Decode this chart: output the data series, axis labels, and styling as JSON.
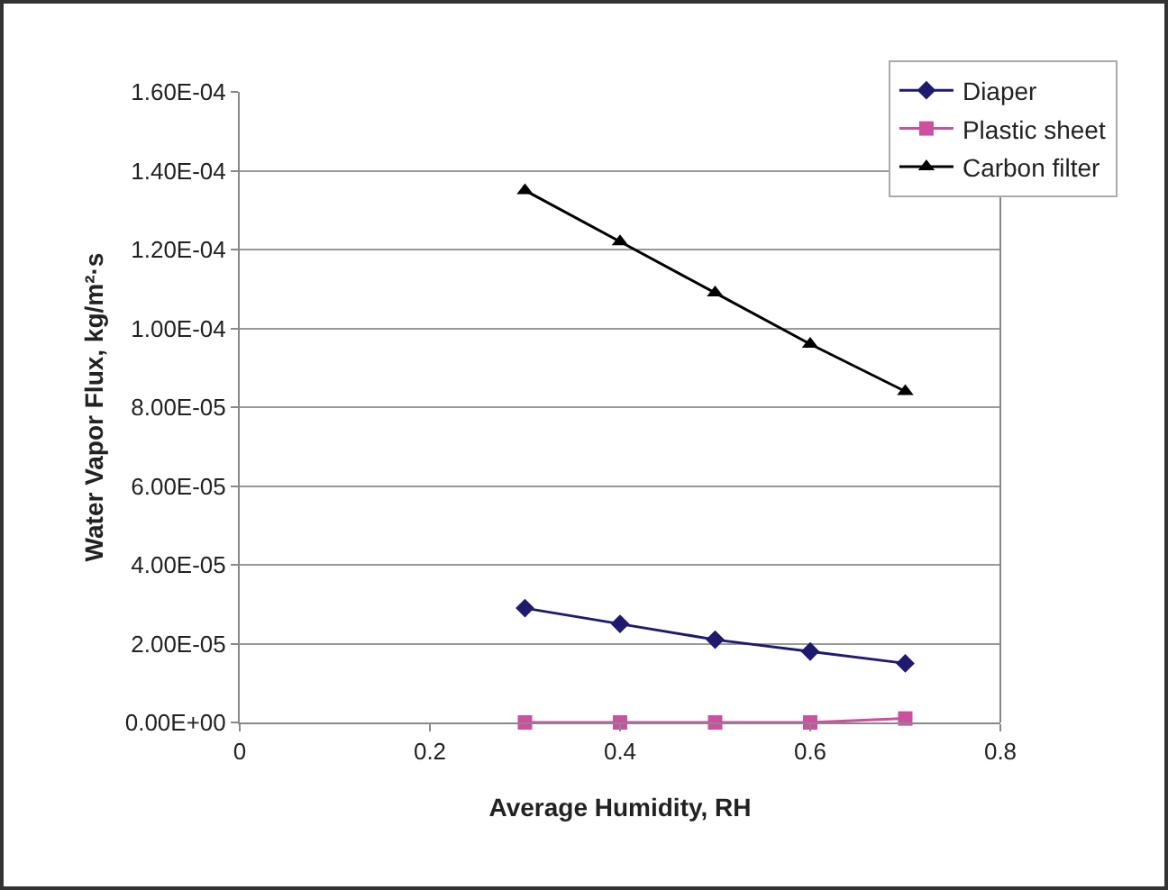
{
  "chart_data": {
    "type": "line",
    "xlabel": "Average Humidity, RH",
    "ylabel": "Water Vapor Flux, kg/m²·s",
    "x": [
      0.3,
      0.4,
      0.5,
      0.6,
      0.7
    ],
    "series": [
      {
        "name": "Diaper",
        "color": "#1f1a6e",
        "marker": "diamond",
        "values": [
          2.9e-05,
          2.5e-05,
          2.1e-05,
          1.8e-05,
          1.5e-05
        ]
      },
      {
        "name": "Plastic sheet",
        "color": "#cc4fa0",
        "marker": "square",
        "values": [
          0,
          0,
          0,
          0,
          1e-06
        ]
      },
      {
        "name": "Carbon filter",
        "color": "#000000",
        "marker": "triangle",
        "values": [
          0.000135,
          0.000122,
          0.000109,
          9.6e-05,
          8.4e-05
        ]
      }
    ],
    "xlim": [
      0,
      0.8
    ],
    "xticks": [
      0,
      0.2,
      0.4,
      0.6,
      0.8
    ],
    "ylim": [
      0,
      0.00016
    ],
    "yticks": [
      {
        "value": 0,
        "label": "0.00E+00"
      },
      {
        "value": 2e-05,
        "label": "2.00E-05"
      },
      {
        "value": 4e-05,
        "label": "4.00E-05"
      },
      {
        "value": 6e-05,
        "label": "6.00E-05"
      },
      {
        "value": 8e-05,
        "label": "8.00E-05"
      },
      {
        "value": 0.0001,
        "label": "1.00E-04"
      },
      {
        "value": 0.00012,
        "label": "1.20E-04"
      },
      {
        "value": 0.00014,
        "label": "1.40E-04"
      },
      {
        "value": 0.00016,
        "label": "1.60E-04"
      }
    ],
    "grid": "y",
    "legend": "top right",
    "line_style": "solid"
  }
}
